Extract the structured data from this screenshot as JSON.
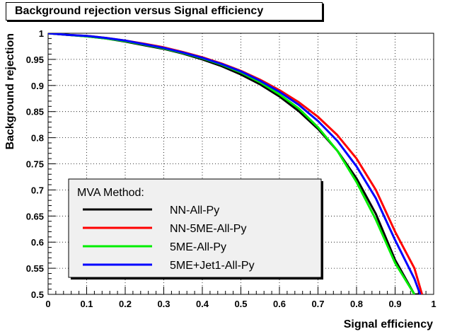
{
  "chart_data": {
    "type": "line",
    "title": "Background rejection versus Signal efficiency",
    "xlabel": "Signal efficiency",
    "ylabel": "Background rejection",
    "xlim": [
      0,
      1
    ],
    "ylim": [
      0.5,
      1
    ],
    "x_ticks": [
      "0",
      "0.1",
      "0.2",
      "0.3",
      "0.4",
      "0.5",
      "0.6",
      "0.7",
      "0.8",
      "0.9",
      "1"
    ],
    "y_ticks": [
      "0.5",
      "0.55",
      "0.6",
      "0.65",
      "0.7",
      "0.75",
      "0.8",
      "0.85",
      "0.9",
      "0.95",
      "1"
    ],
    "grid": true,
    "legend": {
      "title": "MVA Method:",
      "placement": "bottom-left"
    },
    "series": [
      {
        "name": "NN-All-Py",
        "color": "#000000",
        "x": [
          0,
          0.05,
          0.1,
          0.15,
          0.2,
          0.25,
          0.3,
          0.35,
          0.4,
          0.45,
          0.5,
          0.55,
          0.6,
          0.65,
          0.7,
          0.75,
          0.8,
          0.85,
          0.9,
          0.95,
          0.97
        ],
        "y": [
          1.0,
          0.997,
          0.994,
          0.99,
          0.984,
          0.977,
          0.97,
          0.961,
          0.95,
          0.937,
          0.921,
          0.902,
          0.879,
          0.851,
          0.817,
          0.775,
          0.722,
          0.654,
          0.566,
          0.5,
          0.5
        ]
      },
      {
        "name": "NN-5ME-All-Py",
        "color": "#ff0000",
        "x": [
          0,
          0.05,
          0.1,
          0.15,
          0.2,
          0.25,
          0.3,
          0.35,
          0.4,
          0.45,
          0.5,
          0.55,
          0.6,
          0.65,
          0.7,
          0.75,
          0.8,
          0.85,
          0.9,
          0.95,
          0.97
        ],
        "y": [
          1.0,
          0.997,
          0.995,
          0.991,
          0.986,
          0.98,
          0.973,
          0.964,
          0.954,
          0.942,
          0.928,
          0.911,
          0.891,
          0.868,
          0.84,
          0.805,
          0.76,
          0.7,
          0.62,
          0.55,
          0.5
        ]
      },
      {
        "name": "5ME-All-Py",
        "color": "#00ee00",
        "x": [
          0,
          0.05,
          0.1,
          0.15,
          0.2,
          0.25,
          0.3,
          0.35,
          0.4,
          0.45,
          0.5,
          0.55,
          0.6,
          0.65,
          0.7,
          0.75,
          0.8,
          0.85,
          0.9,
          0.95
        ],
        "y": [
          1.0,
          0.997,
          0.994,
          0.99,
          0.985,
          0.978,
          0.971,
          0.962,
          0.952,
          0.94,
          0.925,
          0.906,
          0.883,
          0.856,
          0.82,
          0.775,
          0.715,
          0.643,
          0.56,
          0.5
        ]
      },
      {
        "name": "5ME+Jet1-All-Py",
        "color": "#0000ff",
        "x": [
          0,
          0.05,
          0.1,
          0.15,
          0.2,
          0.25,
          0.3,
          0.35,
          0.4,
          0.45,
          0.5,
          0.55,
          0.6,
          0.65,
          0.7,
          0.75,
          0.8,
          0.85,
          0.9,
          0.95,
          0.965
        ],
        "y": [
          1.0,
          0.997,
          0.995,
          0.991,
          0.986,
          0.979,
          0.972,
          0.963,
          0.953,
          0.941,
          0.927,
          0.909,
          0.888,
          0.863,
          0.832,
          0.794,
          0.745,
          0.684,
          0.604,
          0.53,
          0.5
        ]
      }
    ]
  }
}
